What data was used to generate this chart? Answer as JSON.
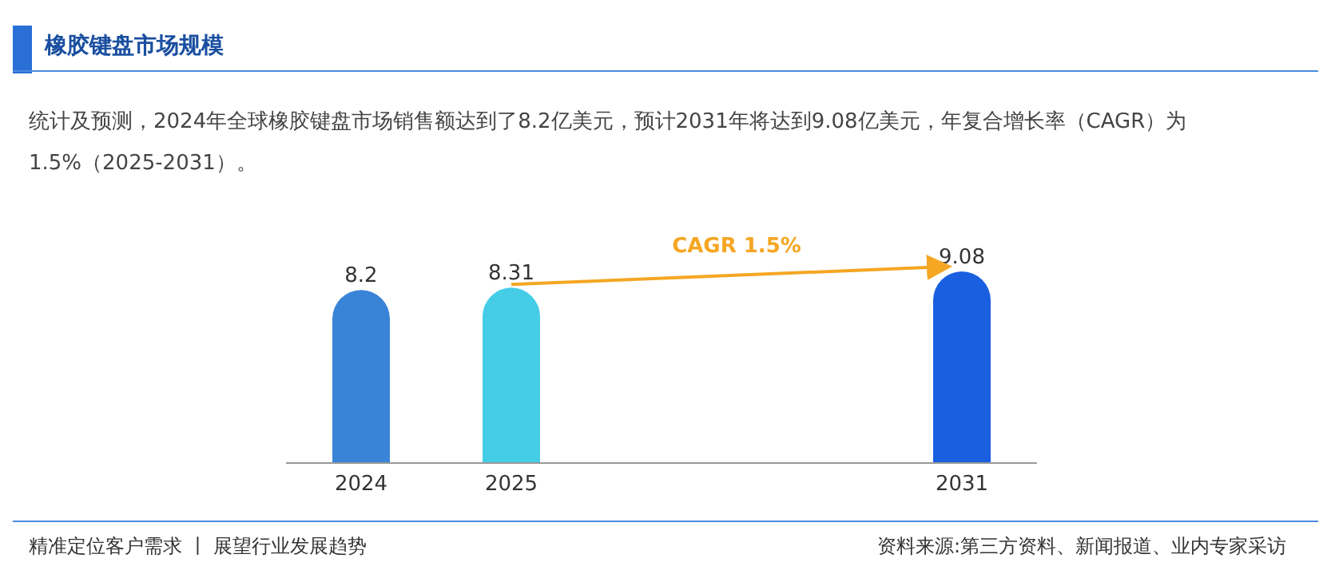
{
  "chart_data": {
    "type": "bar",
    "title": "橡胶键盘市场规模",
    "subtitle": "统计及预测，2024年全球橡胶键盘市场销售额达到了8.2亿美元，预计2031年将达到9.08亿美元，年复合增长率（CAGR）为1.5%（2025-2031）。",
    "categories": [
      "2024",
      "2025",
      null,
      null,
      "2031"
    ],
    "values": [
      8.2,
      8.31,
      null,
      null,
      9.08
    ],
    "colors": [
      "#3a84d8",
      "#45cde8",
      null,
      null,
      "#1a5fe0"
    ],
    "relative": false,
    "data_labels": true,
    "annotations": [
      {
        "text": "CAGR 1.5%"
      },
      "精准定位客户需求 丨 展望行业发展趋势",
      "资料来源:第三方资料、新闻报道、业内专家采访"
    ]
  }
}
